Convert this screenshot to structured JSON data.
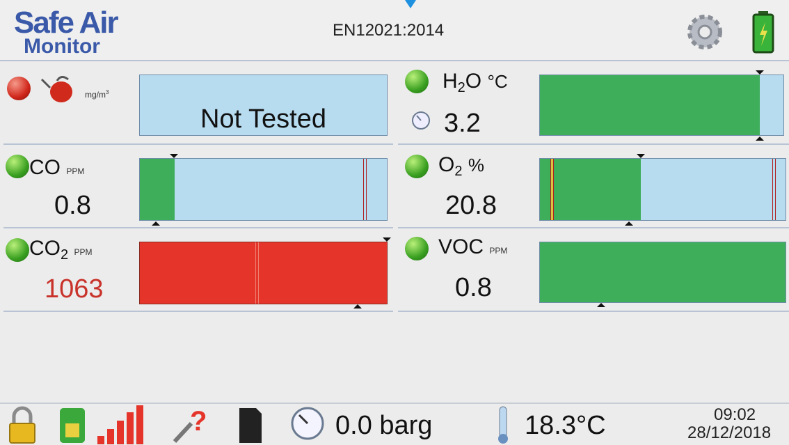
{
  "header": {
    "logo_line1": "Safe Air",
    "logo_line2": "Monitor",
    "standard": "EN12021:2014"
  },
  "panels": [
    {
      "unit": "mg/m",
      "unit_sup": "3",
      "status": "Not Tested"
    },
    {
      "label": "H",
      "sub": "2",
      "label_after": "O",
      "unit": "°C",
      "value": "3.2"
    },
    {
      "label": "CO",
      "unit": "PPM",
      "value": "0.8"
    },
    {
      "label": "O",
      "sub": "2",
      "unit": "%",
      "value": "20.8"
    },
    {
      "label": "CO",
      "sub": "2",
      "unit": "PPM",
      "value": "1063"
    },
    {
      "label": "VOC",
      "unit": "PPM",
      "value": "0.8"
    }
  ],
  "footer": {
    "pressure": "0.0 barg",
    "temperature": "18.3°C",
    "time": "09:02",
    "date": "28/12/2018"
  }
}
